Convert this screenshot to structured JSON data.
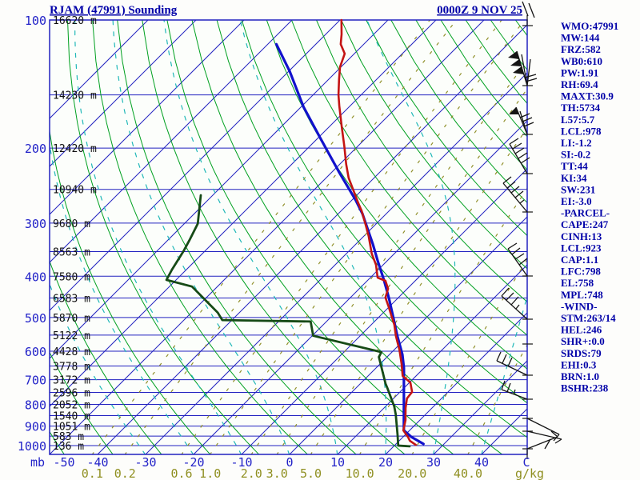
{
  "header": {
    "title": "RJAM (47991) Sounding",
    "datetime": "0000Z  9 NOV 25"
  },
  "indices": [
    "WMO:47991",
    "MW:144",
    "FRZ:582",
    "WB0:610",
    "PW:1.91",
    "RH:69.4",
    "MAXT:30.9",
    "TH:5734",
    "L57:5.7",
    "LCL:978",
    "LI:-1.2",
    "SI:-0.2",
    "TT:44",
    "KI:34",
    "SW:231",
    "EI:-3.0",
    "-PARCEL-",
    "CAPE:247",
    "CINH:13",
    "LCL:923",
    "CAP:1.1",
    "LFC:798",
    "EL:758",
    "MPL:748",
    "-WIND-",
    "STM:263/14",
    "HEL:246",
    "SHR+:0.0",
    "SRDS:79",
    "EHI:0.3",
    "BRN:1.0",
    "BSHR:238"
  ],
  "axes": {
    "pressure_unit": "mb",
    "pressure_labels": [
      100,
      200,
      300,
      400,
      500,
      600,
      700,
      800,
      900,
      1000
    ],
    "temp_unit": "C",
    "temp_labels": [
      -50,
      -40,
      -30,
      -20,
      -10,
      0,
      10,
      20,
      30,
      40
    ],
    "mixing_unit": "g/kg",
    "mixing_labels": [
      "0.1",
      "0.2",
      "0.6",
      "1.0",
      "2.0",
      "3.0",
      "5.0",
      "10.0",
      "20.0",
      "40.0"
    ]
  },
  "altitude_labels": [
    {
      "p": 100,
      "label": "16620 m"
    },
    {
      "p": 150,
      "label": "14230 m"
    },
    {
      "p": 200,
      "label": "12420 m"
    },
    {
      "p": 250,
      "label": "10940 m"
    },
    {
      "p": 300,
      "label": "9680 m"
    },
    {
      "p": 350,
      "label": "8563 m"
    },
    {
      "p": 400,
      "label": "7580 m"
    },
    {
      "p": 450,
      "label": "6583 m"
    },
    {
      "p": 500,
      "label": "5870 m"
    },
    {
      "p": 550,
      "label": "5122 m"
    },
    {
      "p": 600,
      "label": "4428 m"
    },
    {
      "p": 650,
      "label": "3778 m"
    },
    {
      "p": 700,
      "label": "3172 m"
    },
    {
      "p": 750,
      "label": "2596 m"
    },
    {
      "p": 800,
      "label": "2052 m"
    },
    {
      "p": 850,
      "label": "1540 m"
    },
    {
      "p": 900,
      "label": "1051 m"
    },
    {
      "p": 950,
      "label": "583 m"
    },
    {
      "p": 1000,
      "label": "136 m"
    }
  ],
  "chart_data": {
    "type": "line",
    "subtype": "skew-t log-p sounding",
    "title": "RJAM (47991) Sounding",
    "xlabel": "Temperature (C) / mixing ratio (g/kg)",
    "ylabel": "Pressure (mb)",
    "pressure_range": [
      100,
      1050
    ],
    "temp_axis_range": [
      -50,
      40
    ],
    "grid": {
      "isobar_step_hpa": 50,
      "isotherm_step_c": 10,
      "dry_adiabat_step_c": 10,
      "moist_adiabat_step_c": 10
    },
    "series": [
      {
        "name": "temperature",
        "pairs_hpa_c": [
          [
            100,
            -79.7
          ],
          [
            108,
            -76.7
          ],
          [
            114,
            -74.8
          ],
          [
            120,
            -72.0
          ],
          [
            129,
            -70.2
          ],
          [
            138,
            -67.8
          ],
          [
            150,
            -64.7
          ],
          [
            159,
            -62.3
          ],
          [
            179,
            -57.2
          ],
          [
            198,
            -52.8
          ],
          [
            218,
            -48.7
          ],
          [
            235,
            -45.3
          ],
          [
            250,
            -42.0
          ],
          [
            268,
            -38.3
          ],
          [
            281,
            -35.7
          ],
          [
            304,
            -31.8
          ],
          [
            322,
            -29.0
          ],
          [
            354,
            -24.7
          ],
          [
            376,
            -21.5
          ],
          [
            403,
            -18.5
          ],
          [
            410,
            -16.2
          ],
          [
            428,
            -14.0
          ],
          [
            449,
            -12.7
          ],
          [
            473,
            -10.0
          ],
          [
            494,
            -7.8
          ],
          [
            520,
            -5.2
          ],
          [
            553,
            -2.5
          ],
          [
            597,
            1.2
          ],
          [
            643,
            4.5
          ],
          [
            686,
            7.2
          ],
          [
            711,
            10.2
          ],
          [
            748,
            12.5
          ],
          [
            775,
            12.8
          ],
          [
            816,
            14.5
          ],
          [
            871,
            17.0
          ],
          [
            921,
            18.7
          ],
          [
            954,
            21.0
          ],
          [
            974,
            22.2
          ],
          [
            996,
            24.3
          ]
        ]
      },
      {
        "name": "dewpoint",
        "pairs_hpa_c": [
          [
            258,
            -72.5
          ],
          [
            301,
            -67.2
          ],
          [
            329,
            -65.5
          ],
          [
            348,
            -64.5
          ],
          [
            386,
            -63.0
          ],
          [
            408,
            -62.0
          ],
          [
            423,
            -55.3
          ],
          [
            487,
            -44.5
          ],
          [
            507,
            -42.0
          ],
          [
            511,
            -23.3
          ],
          [
            552,
            -19.8
          ],
          [
            603,
            -2.2
          ],
          [
            619,
            -1.7
          ],
          [
            716,
            5.3
          ],
          [
            729,
            6.3
          ],
          [
            809,
            11.8
          ],
          [
            845,
            13.8
          ],
          [
            941,
            18.3
          ],
          [
            1000,
            20.8
          ],
          [
            1004,
            23.3
          ]
        ]
      },
      {
        "name": "parcel",
        "pairs_hpa_c": [
          [
            114,
            -88.2
          ],
          [
            132,
            -79.8
          ],
          [
            160,
            -69.5
          ],
          [
            192,
            -58.7
          ],
          [
            227,
            -48.7
          ],
          [
            265,
            -39.2
          ],
          [
            285,
            -35.0
          ],
          [
            308,
            -31.0
          ],
          [
            336,
            -26.5
          ],
          [
            370,
            -21.7
          ],
          [
            408,
            -16.7
          ],
          [
            449,
            -12.0
          ],
          [
            496,
            -7.3
          ],
          [
            553,
            -2.2
          ],
          [
            611,
            2.7
          ],
          [
            657,
            5.8
          ],
          [
            921,
            18.8
          ],
          [
            954,
            21.7
          ],
          [
            991,
            25.7
          ]
        ]
      }
    ]
  },
  "wind_barbs": [
    {
      "lines": [
        [
          660,
          20,
          653,
          2
        ],
        [
          668,
          22,
          661,
          4
        ]
      ],
      "pennants": []
    },
    {
      "lines": [
        [
          659,
          107,
          646,
          64
        ],
        [
          659,
          107,
          663,
          74
        ],
        [
          659,
          107,
          652,
          68
        ],
        [
          656,
          97,
          670,
          93
        ],
        [
          657,
          102,
          671,
          98
        ]
      ],
      "pennants": [
        [
          646,
          64,
          649,
          74,
          635,
          72
        ],
        [
          649,
          74,
          652,
          83,
          638,
          82
        ],
        [
          652,
          83,
          655,
          93,
          641,
          91
        ]
      ]
    },
    {
      "lines": [
        [
          659,
          168,
          645,
          134
        ],
        [
          659,
          168,
          650,
          139
        ],
        [
          650,
          147,
          662,
          142
        ],
        [
          653,
          152,
          665,
          147
        ],
        [
          655,
          158,
          667,
          153
        ]
      ],
      "pennants": [
        [
          645,
          134,
          649,
          143,
          636,
          143
        ]
      ]
    },
    {
      "lines": [
        [
          659,
          217,
          637,
          180
        ],
        [
          637,
          180,
          648,
          173
        ],
        [
          641,
          186,
          652,
          179
        ],
        [
          644,
          192,
          655,
          185
        ],
        [
          648,
          198,
          659,
          191
        ],
        [
          651,
          204,
          662,
          197
        ]
      ],
      "pennants": []
    },
    {
      "lines": [
        [
          659,
          265,
          629,
          229
        ],
        [
          629,
          229,
          639,
          221
        ],
        [
          634,
          235,
          644,
          227
        ],
        [
          639,
          241,
          649,
          233
        ],
        [
          644,
          247,
          654,
          239
        ],
        [
          650,
          254,
          655,
          250
        ]
      ],
      "pennants": []
    },
    {
      "lines": [
        [
          659,
          345,
          635,
          311
        ],
        [
          635,
          311,
          646,
          304
        ],
        [
          640,
          318,
          650,
          310
        ],
        [
          644,
          324,
          655,
          317
        ],
        [
          649,
          331,
          659,
          323
        ]
      ],
      "pennants": []
    },
    {
      "lines": [
        [
          659,
          399,
          627,
          370
        ],
        [
          627,
          370,
          636,
          360
        ],
        [
          633,
          375,
          642,
          366
        ],
        [
          639,
          381,
          648,
          371
        ],
        [
          645,
          386,
          649,
          381
        ]
      ],
      "pennants": []
    },
    {
      "lines": [
        [
          659,
          469,
          621,
          451
        ],
        [
          621,
          451,
          626,
          440
        ],
        [
          628,
          454,
          633,
          443
        ],
        [
          635,
          458,
          640,
          447
        ]
      ],
      "pennants": []
    },
    {
      "lines": [
        [
          659,
          499,
          627,
          487
        ],
        [
          627,
          487,
          631,
          476
        ],
        [
          634,
          490,
          638,
          479
        ],
        [
          642,
          493,
          644,
          487
        ]
      ],
      "pennants": []
    },
    {
      "lines": [
        [
          659,
          523,
          699,
          543
        ],
        [
          699,
          543,
          692,
          551
        ]
      ],
      "pennants": []
    },
    {
      "lines": [
        [
          659,
          539,
          702,
          549
        ],
        [
          702,
          549,
          694,
          554
        ]
      ],
      "pennants": []
    },
    {
      "lines": [
        [
          659,
          561,
          697,
          546
        ],
        [
          697,
          546,
          689,
          539
        ],
        [
          688,
          549,
          681,
          561
        ]
      ],
      "pennants": []
    }
  ],
  "edge_ticks": [
    32,
    107,
    168,
    217,
    265,
    345,
    399,
    430,
    469,
    499,
    523,
    539,
    561
  ],
  "colors": {
    "frame": "#2222c0",
    "isobar": "#2222c0",
    "isotherm": "#2222c0",
    "dry_adiabat": "#00a020",
    "moist_adiabat": "#20b8b8",
    "mixing_ratio": "#90902a",
    "temperature_trace": "#c41414",
    "dewpoint_trace": "#164a16",
    "parcel_trace": "#1111cc",
    "barb": "#151515",
    "plot_background": "#fcfefb"
  }
}
